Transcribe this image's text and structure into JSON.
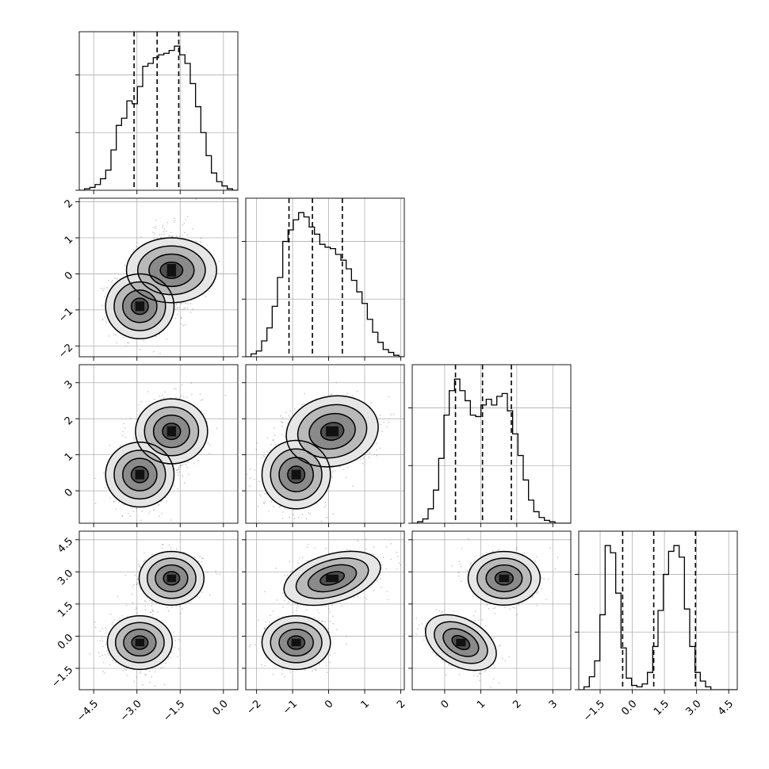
{
  "chart_data": {
    "type": "corner",
    "title": "",
    "xlabel": "",
    "ylabel": "",
    "grid": true,
    "parameters": [
      {
        "range": [
          -5.0,
          0.5
        ],
        "ticks": [
          -4.5,
          -3.0,
          -1.5,
          0.0
        ],
        "tick_labels": [
          "−4.5",
          "−3.0",
          "−1.5",
          "0.0"
        ],
        "quantiles": [
          -3.1,
          -2.3,
          -1.55
        ],
        "modes": [
          {
            "mean": -2.9,
            "sd": 0.45,
            "weight": 0.5
          },
          {
            "mean": -1.8,
            "sd": 0.45,
            "weight": 0.5
          }
        ]
      },
      {
        "range": [
          -2.3,
          2.1
        ],
        "ticks": [
          -2,
          -1,
          0,
          1,
          2
        ],
        "tick_labels": [
          "−2",
          "−1",
          "0",
          "1",
          "2"
        ],
        "quantiles": [
          -1.1,
          -0.45,
          0.38
        ],
        "modes": [
          {
            "mean": -0.9,
            "sd": 0.38,
            "weight": 0.5
          },
          {
            "mean": 0.1,
            "sd": 0.5,
            "weight": 0.5
          }
        ]
      },
      {
        "range": [
          -0.9,
          3.5
        ],
        "ticks": [
          0,
          1,
          2,
          3
        ],
        "tick_labels": [
          "0",
          "1",
          "2",
          "3"
        ],
        "quantiles": [
          0.3,
          1.05,
          1.85
        ],
        "modes": [
          {
            "mean": 0.45,
            "sd": 0.38,
            "weight": 0.5
          },
          {
            "mean": 1.65,
            "sd": 0.4,
            "weight": 0.5
          }
        ]
      },
      {
        "range": [
          -2.5,
          4.9
        ],
        "ticks": [
          -1.5,
          0.0,
          1.5,
          3.0,
          4.5
        ],
        "tick_labels": [
          "−1.5",
          "0.0",
          "1.5",
          "3.0",
          "4.5"
        ],
        "quantiles": [
          -0.45,
          1.0,
          2.95
        ],
        "modes": [
          {
            "mean": -0.3,
            "sd": 0.5,
            "weight": 0.5
          },
          {
            "mean": 2.7,
            "sd": 0.5,
            "weight": 0.5
          }
        ]
      }
    ],
    "histograms": [
      {
        "bins": 30,
        "counts_fraction": [
          0.0,
          0.01,
          0.02,
          0.04,
          0.08,
          0.14,
          0.28,
          0.45,
          0.5,
          0.62,
          0.6,
          0.72,
          0.86,
          0.88,
          0.92,
          0.94,
          0.95,
          0.97,
          1.0,
          0.94,
          0.88,
          0.74,
          0.58,
          0.4,
          0.24,
          0.12,
          0.06,
          0.03,
          0.01,
          0.0
        ]
      },
      {
        "bins": 30,
        "counts_fraction": [
          0.0,
          0.02,
          0.04,
          0.11,
          0.2,
          0.35,
          0.55,
          0.8,
          0.88,
          0.95,
          1.0,
          0.97,
          0.9,
          0.85,
          0.78,
          0.76,
          0.75,
          0.71,
          0.67,
          0.61,
          0.53,
          0.45,
          0.37,
          0.26,
          0.17,
          0.1,
          0.05,
          0.03,
          0.01,
          0.0
        ]
      },
      {
        "bins": 30,
        "counts_fraction": [
          0.0,
          0.01,
          0.03,
          0.1,
          0.23,
          0.45,
          0.75,
          0.92,
          1.0,
          0.92,
          0.85,
          0.75,
          0.74,
          0.82,
          0.86,
          0.82,
          0.88,
          0.9,
          0.78,
          0.62,
          0.47,
          0.3,
          0.16,
          0.08,
          0.04,
          0.02,
          0.01,
          0.0,
          0.0,
          0.0
        ]
      },
      {
        "bins": 30,
        "counts_fraction": [
          0.0,
          0.02,
          0.09,
          0.2,
          0.52,
          1.0,
          0.95,
          0.67,
          0.29,
          0.08,
          0.03,
          0.02,
          0.04,
          0.12,
          0.3,
          0.55,
          0.8,
          0.96,
          1.0,
          0.92,
          0.56,
          0.3,
          0.12,
          0.06,
          0.02,
          0.0,
          0.0,
          0.0,
          0.0,
          0.0
        ]
      }
    ],
    "pairs": [
      {
        "x": 0,
        "y": 1,
        "clusters": [
          {
            "cx": -2.9,
            "cy": -0.9,
            "sx": 0.45,
            "sy": 0.38,
            "rho": 0.0
          },
          {
            "cx": -1.8,
            "cy": 0.1,
            "sx": 0.45,
            "sy": 0.5,
            "rho": 0.0
          }
        ]
      },
      {
        "x": 0,
        "y": 2,
        "clusters": [
          {
            "cx": -2.9,
            "cy": 0.45,
            "sx": 0.45,
            "sy": 0.38,
            "rho": 0.0
          },
          {
            "cx": -1.8,
            "cy": 1.65,
            "sx": 0.45,
            "sy": 0.4,
            "rho": 0.0
          }
        ]
      },
      {
        "x": 0,
        "y": 3,
        "clusters": [
          {
            "cx": -2.9,
            "cy": -0.3,
            "sx": 0.45,
            "sy": 0.5,
            "rho": 0.0
          },
          {
            "cx": -1.8,
            "cy": 2.7,
            "sx": 0.45,
            "sy": 0.5,
            "rho": 0.0
          }
        ]
      },
      {
        "x": 1,
        "y": 2,
        "clusters": [
          {
            "cx": -0.9,
            "cy": 0.45,
            "sx": 0.38,
            "sy": 0.38,
            "rho": 0.0
          },
          {
            "cx": 0.1,
            "cy": 1.65,
            "sx": 0.5,
            "sy": 0.4,
            "rho": 0.1
          }
        ]
      },
      {
        "x": 1,
        "y": 3,
        "clusters": [
          {
            "cx": -0.9,
            "cy": -0.3,
            "sx": 0.38,
            "sy": 0.5,
            "rho": 0.0
          },
          {
            "cx": 0.1,
            "cy": 2.7,
            "sx": 0.5,
            "sy": 0.5,
            "rho": 0.35
          }
        ]
      },
      {
        "x": 2,
        "y": 3,
        "clusters": [
          {
            "cx": 0.45,
            "cy": -0.3,
            "sx": 0.38,
            "sy": 0.5,
            "rho": -0.4
          },
          {
            "cx": 1.65,
            "cy": 2.7,
            "sx": 0.4,
            "sy": 0.5,
            "rho": 0.0
          }
        ]
      }
    ],
    "contour_levels_sigma": [
      0.5,
      1.0,
      1.5,
      2.0
    ],
    "scatter_points_per_cluster": 700
  }
}
